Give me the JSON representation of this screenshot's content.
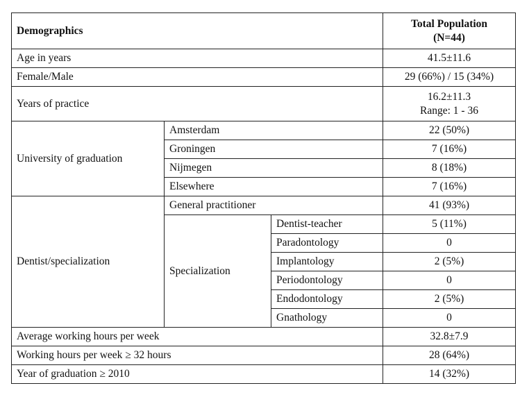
{
  "table": {
    "header": {
      "label": "Demographics",
      "population": "Total Population",
      "n": "(N=44)"
    },
    "rows": [
      {
        "label": "Age in years",
        "value": "41.5±11.6"
      },
      {
        "label": "Female/Male",
        "value": "29 (66%) / 15 (34%)"
      },
      {
        "label": "Years of practice",
        "value": [
          "16.2±11.3",
          "Range: 1 - 36"
        ]
      },
      {
        "label": "University of graduation",
        "items": [
          {
            "label": "Amsterdam",
            "value": "22 (50%)"
          },
          {
            "label": "Groningen",
            "value": "7 (16%)"
          },
          {
            "label": "Nijmegen",
            "value": "8 (18%)"
          },
          {
            "label": "Elsewhere",
            "value": "7 (16%)"
          }
        ]
      },
      {
        "label": "Dentist/specialization",
        "general": {
          "label": "General practitioner",
          "value": "41 (93%)"
        },
        "specialization": {
          "label": "Specialization",
          "items": [
            {
              "label": "Dentist-teacher",
              "value": "5 (11%)"
            },
            {
              "label": "Paradontology",
              "value": "0"
            },
            {
              "label": "Implantology",
              "value": "2 (5%)"
            },
            {
              "label": "Periodontology",
              "value": "0"
            },
            {
              "label": "Endodontology",
              "value": "2 (5%)"
            },
            {
              "label": "Gnathology",
              "value": "0"
            }
          ]
        }
      },
      {
        "label": "Average working hours per week",
        "value": "32.8±7.9"
      },
      {
        "label": "Working hours per week ≥ 32 hours",
        "value": "28 (64%)"
      },
      {
        "label": "Year of graduation ≥ 2010",
        "value": "14 (32%)"
      }
    ]
  }
}
